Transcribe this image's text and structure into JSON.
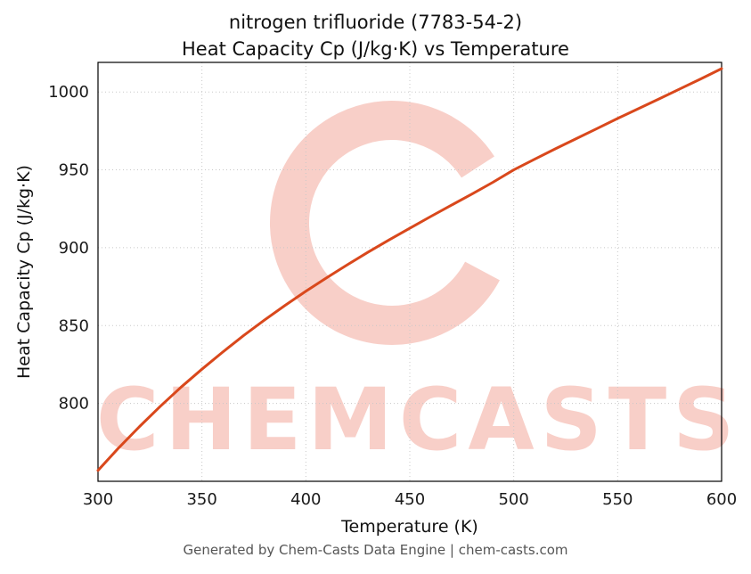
{
  "page": {
    "title_line1": "nitrogen trifluoride (7783-54-2)",
    "title_line2": "Heat Capacity Cp (J/kg·K) vs Temperature",
    "footer": "Generated by Chem-Casts Data Engine | chem-casts.com",
    "watermark": "CHEMCASTS"
  },
  "chart_data": {
    "type": "line",
    "title": "nitrogen trifluoride (7783-54-2) Heat Capacity Cp (J/kg·K) vs Temperature",
    "xlabel": "Temperature (K)",
    "ylabel": "Heat Capacity Cp (J/kg·K)",
    "xlim": [
      300,
      600
    ],
    "ylim": [
      750,
      1019
    ],
    "x_ticks": [
      300,
      350,
      400,
      450,
      500,
      550,
      600
    ],
    "y_ticks": [
      800,
      850,
      900,
      950,
      1000
    ],
    "grid": true,
    "legend": "none",
    "line_color": "#d9481c",
    "grid_color": "#c8c8c8",
    "watermark_color": "#e8604a",
    "series": [
      {
        "name": "Heat Capacity Cp",
        "x": [
          300,
          310,
          320,
          330,
          340,
          350,
          360,
          370,
          380,
          390,
          400,
          410,
          420,
          430,
          440,
          450,
          460,
          470,
          480,
          490,
          500,
          510,
          520,
          530,
          540,
          550,
          560,
          570,
          580,
          590,
          600
        ],
        "y": [
          757,
          771.5,
          785.2,
          798.2,
          810.5,
          822,
          833,
          843.5,
          853.5,
          863,
          872,
          880.7,
          889.1,
          897.2,
          905,
          912.5,
          920,
          927.3,
          934.5,
          942,
          950,
          956.8,
          963.5,
          970,
          976.5,
          983,
          989.3,
          995.6,
          1002,
          1008.4,
          1015
        ]
      }
    ]
  }
}
